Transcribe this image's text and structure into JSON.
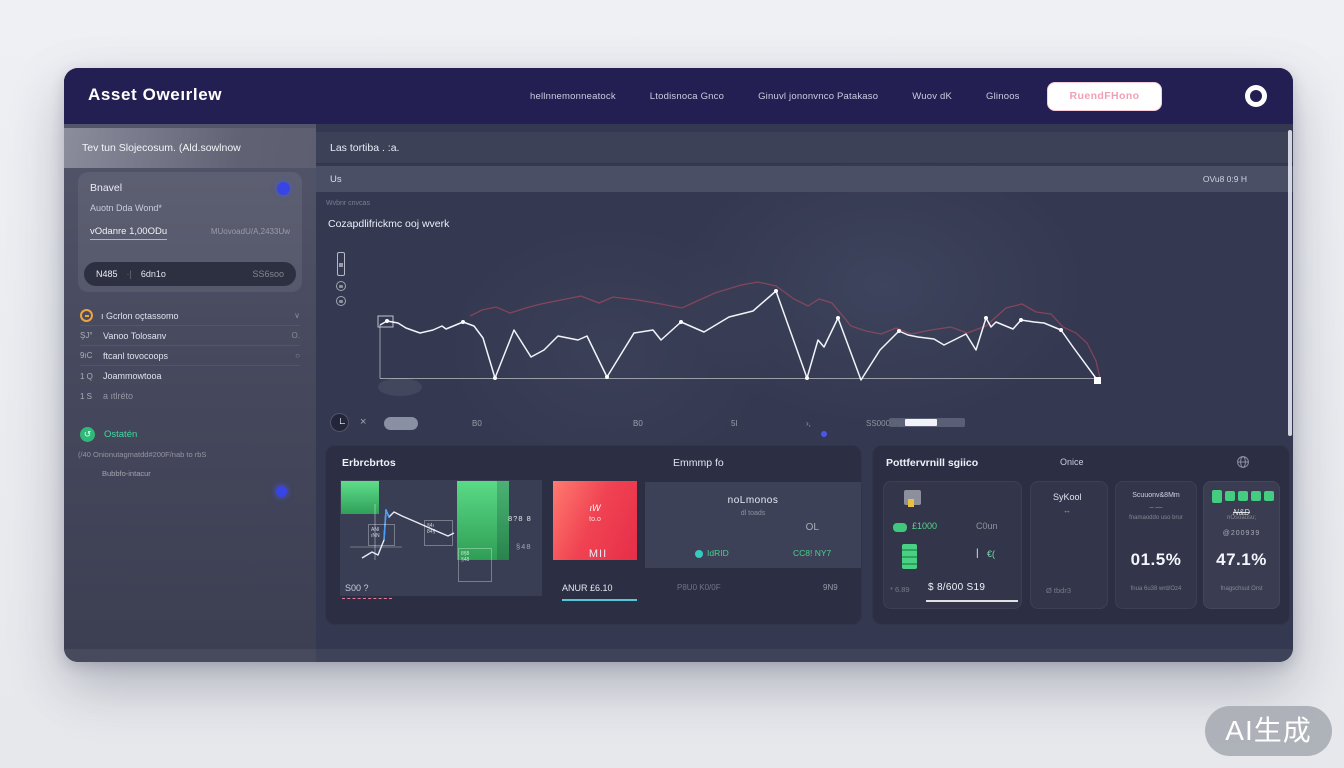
{
  "watermark": {
    "label": "AI生成"
  },
  "topbar": {
    "title": "Asset Oweırlew",
    "nav": [
      "hellnnemonneatock",
      "Ltodisnoca Gnco",
      "Ginuvl jononvnco Patakaso",
      "Wuov dK",
      "Glinoos"
    ],
    "cta": "RuendFHono"
  },
  "sidebar": {
    "header": "Tev tun Slojecosum. (Ald.sowlnow",
    "card": {
      "title": "Bnavel",
      "subtitle": "Auotn Dda Wond*",
      "value": "vOdanre 1,00ODu",
      "value_right": "MUovoadU/A,2433Uw",
      "pill": {
        "a": "N485",
        "div": "·|",
        "b": "6dn1o",
        "c": "SS6soo"
      }
    },
    "menu": [
      {
        "icon": "",
        "label": "ı Gcrlon oçtassomo",
        "right": "∨"
      },
      {
        "icon": "ŞJ°",
        "label": "Vanoo Tolosanv",
        "right": "O."
      },
      {
        "icon": "9ıC",
        "label": "ftcanl tovocoops",
        "right": "○"
      },
      {
        "icon": "1 Q",
        "label": "Joammowtooa",
        "right": ""
      },
      {
        "icon": "1 S",
        "label": "a ıtlréto",
        "right": ""
      }
    ],
    "action_icon": "↺",
    "action": "Ostatén",
    "note1": "(/40 Onionutagmatdd#200F/nab to rbS",
    "note2": "Bubbfo-intacur"
  },
  "main": {
    "toolbar": "Las tortiba . :a.",
    "subbar_left": "Us",
    "subbar_right": "OVu8 0:9 H",
    "hint": "Wvbnr cnvcas",
    "chart_title": "Cozapdlifrickmc ooj wverk",
    "footer": {
      "x_icon": "×",
      "x1": "B0",
      "x2": "B0",
      "x3": "5l",
      "x4": "›,",
      "value": "SS0000NW"
    },
    "chart_data": {
      "type": "line",
      "title": "Cozapdlifrickmc ooj wverk",
      "x_axis_labels": [
        "B0",
        "B0",
        "5l",
        "›,"
      ],
      "legend": "none",
      "grid": false,
      "note": "two unlabeled series on faded baseline axis; svg coords (965x200), baseline y=148.5, axis x=50",
      "series": [
        {
          "name": "primary-white",
          "color": "#f2f4fa",
          "points": [
            [
              50,
              95
            ],
            [
              57,
              91
            ],
            [
              68,
              93
            ],
            [
              76,
              98
            ],
            [
              90,
              103
            ],
            [
              103,
              100
            ],
            [
              112,
              96
            ],
            [
              116,
              99
            ],
            [
              133,
              92
            ],
            [
              144,
              96
            ],
            [
              153,
              108
            ],
            [
              165,
              148
            ],
            [
              184,
              100
            ],
            [
              201,
              127
            ],
            [
              214,
              120
            ],
            [
              228,
              106
            ],
            [
              248,
              110
            ],
            [
              257,
              106
            ],
            [
              277,
              147
            ],
            [
              304,
              103
            ],
            [
              323,
              100
            ],
            [
              331,
              110
            ],
            [
              351,
              92
            ],
            [
              374,
              102
            ],
            [
              399,
              87
            ],
            [
              423,
              81
            ],
            [
              446,
              61
            ],
            [
              477,
              148
            ],
            [
              488,
              110
            ],
            [
              494,
              117
            ],
            [
              508,
              88
            ],
            [
              531,
              150
            ],
            [
              550,
              120
            ],
            [
              569,
              101
            ],
            [
              578,
              105
            ],
            [
              588,
              107
            ],
            [
              604,
              109
            ],
            [
              614,
              115
            ],
            [
              628,
              108
            ],
            [
              636,
              104
            ],
            [
              646,
              120
            ],
            [
              656,
              88
            ],
            [
              661,
              97
            ],
            [
              666,
              92
            ],
            [
              683,
              99
            ],
            [
              691,
              90
            ],
            [
              704,
              92
            ],
            [
              714,
              93
            ],
            [
              731,
              100
            ],
            [
              743,
              117
            ],
            [
              768,
              151
            ]
          ]
        },
        {
          "name": "comparison-red",
          "color": "rgba(205,80,100,0.5)",
          "points": [
            [
              140,
              86
            ],
            [
              152,
              80
            ],
            [
              166,
              77
            ],
            [
              180,
              83
            ],
            [
              196,
              78
            ],
            [
              211,
              74
            ],
            [
              231,
              70
            ],
            [
              251,
              66
            ],
            [
              269,
              73
            ],
            [
              283,
              67
            ],
            [
              308,
              70
            ],
            [
              331,
              74
            ],
            [
              352,
              78
            ],
            [
              365,
              72
            ],
            [
              385,
              63
            ],
            [
              411,
              55
            ],
            [
              428,
              52
            ],
            [
              446,
              56
            ],
            [
              464,
              69
            ],
            [
              478,
              76
            ],
            [
              489,
              69
            ],
            [
              502,
              73
            ],
            [
              521,
              96
            ],
            [
              536,
              101
            ],
            [
              551,
              104
            ],
            [
              566,
              98
            ],
            [
              581,
              104
            ],
            [
              601,
              100
            ],
            [
              621,
              97
            ],
            [
              637,
              103
            ],
            [
              656,
              96
            ],
            [
              676,
              78
            ],
            [
              692,
              74
            ],
            [
              706,
              82
            ],
            [
              721,
              84
            ],
            [
              733,
              97
            ],
            [
              746,
              103
            ],
            [
              757,
              113
            ],
            [
              766,
              131
            ],
            [
              770,
              148
            ]
          ]
        }
      ],
      "markers": [
        [
          57,
          91
        ],
        [
          133,
          92
        ],
        [
          165,
          148
        ],
        [
          277,
          147
        ],
        [
          351,
          92
        ],
        [
          446,
          61
        ],
        [
          477,
          148
        ],
        [
          508,
          88
        ],
        [
          569,
          101
        ],
        [
          656,
          88
        ],
        [
          691,
          90
        ],
        [
          731,
          100
        ],
        [
          768,
          151
        ]
      ]
    }
  },
  "panels": {
    "left": {
      "title": "Erbrcbrtos",
      "title2": "Emmmp fo",
      "collage": {
        "box1": "ANl\nıNN",
        "box2": "§4ı\n84§",
        "box3": "8§8\n§48",
        "num_top": "8?8 8",
        "num_mid": "§48",
        "line": [
          [
            22,
            78
          ],
          [
            32,
            72
          ],
          [
            38,
            75
          ],
          [
            44,
            60
          ],
          [
            46,
            30
          ],
          [
            49,
            37
          ],
          [
            54,
            32
          ],
          [
            62,
            36
          ],
          [
            76,
            42
          ],
          [
            94,
            50
          ],
          [
            108,
            56
          ],
          [
            114,
            53
          ]
        ],
        "line_blue": [
          [
            44,
            60
          ],
          [
            46,
            30
          ],
          [
            49,
            37
          ]
        ],
        "label": "S00 ?"
      },
      "red_card": {
        "t1": "ıW",
        "t2": "to.o",
        "t3": "MII",
        "label": "ANUR £6.10"
      },
      "quote_card": {
        "title": "noLmonos",
        "sub": "dl toads",
        "right": "OL",
        "tag1": "IdRID",
        "tag2": "CC8! NY7"
      },
      "foot_left": "P8U0 K0/0F",
      "foot_right": "9N9"
    },
    "right": {
      "title": "Pottfervrnill sgiico",
      "mid": "Onice",
      "card1": {
        "amount": "£1000",
        "mid": "C0un",
        "bar": "|",
        "cur": "€(",
        "foot1": "* 6.89",
        "main": "$ 8/600 S19"
      },
      "card2": {
        "title": "SyKool",
        "arrows": "↔",
        "foot": "Ø tbdr3"
      },
      "card3": {
        "title": "Scuuonv&8Mm",
        "dash": "– —",
        "small": "fnamaoddo uso brur",
        "big": "01.5%",
        "foot": "fnua 6u38 wrd/Oz4"
      },
      "card4": {
        "strike": "N&D",
        "small": "nOsoausu;",
        "code": "@200939",
        "big": "47.1%",
        "foot": "fnagschsut Orst"
      }
    }
  }
}
